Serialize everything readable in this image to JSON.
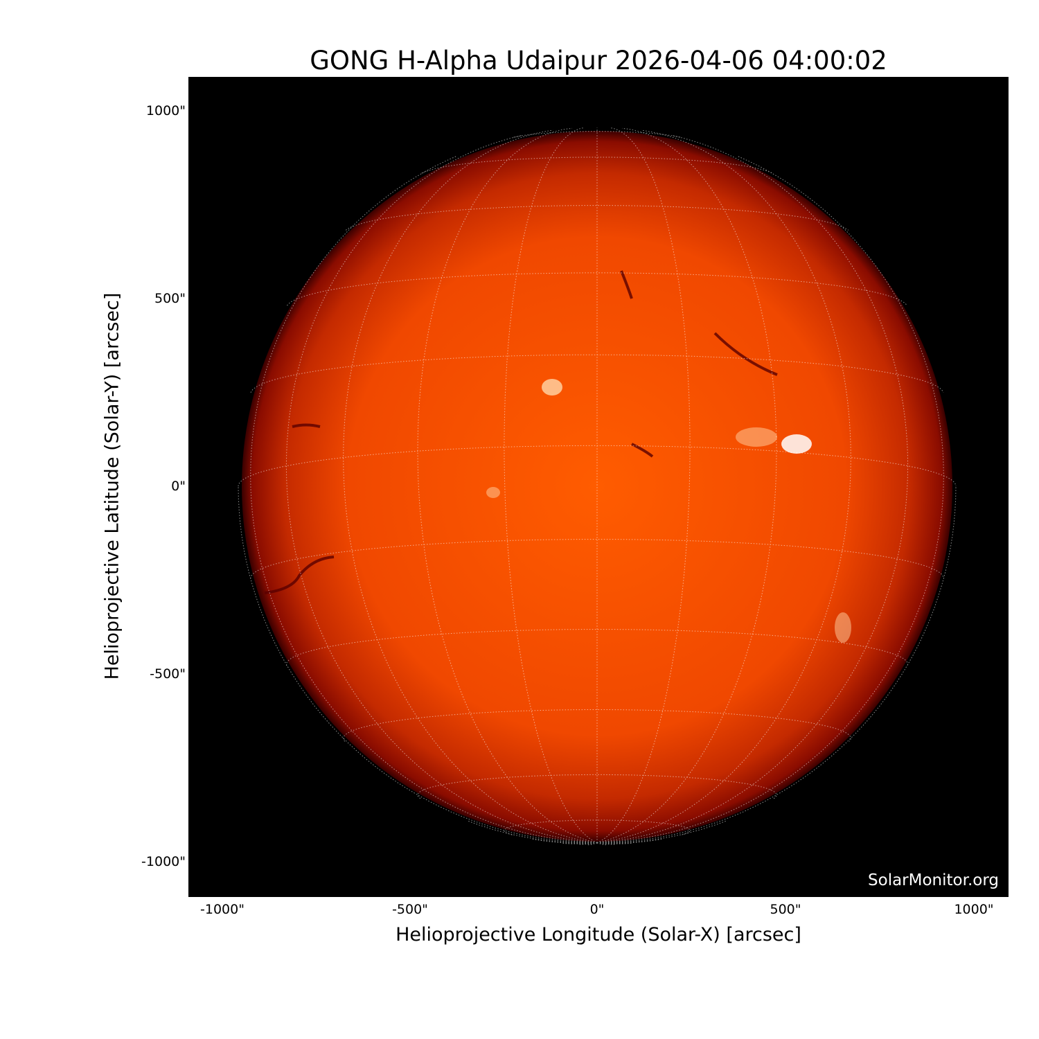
{
  "title": "GONG H-Alpha Udaipur 2026-04-06 04:00:02",
  "xlabel": "Helioprojective Longitude (Solar-X) [arcsec]",
  "ylabel": "Helioprojective Latitude (Solar-Y) [arcsec]",
  "x_ticks": [
    "-1000\"",
    "-500\"",
    "0\"",
    "500\"",
    "1000\""
  ],
  "y_ticks": [
    "1000\"",
    "500\"",
    "0\"",
    "-500\"",
    "-1000\""
  ],
  "watermark": "SolarMonitor.org",
  "colors": {
    "disk_center": "#ff5a00",
    "disk_limb": "#7a0a00",
    "background": "#000000",
    "grid": "#ffffff"
  },
  "grid": {
    "type": "heliographic",
    "spacing_deg": 15
  }
}
